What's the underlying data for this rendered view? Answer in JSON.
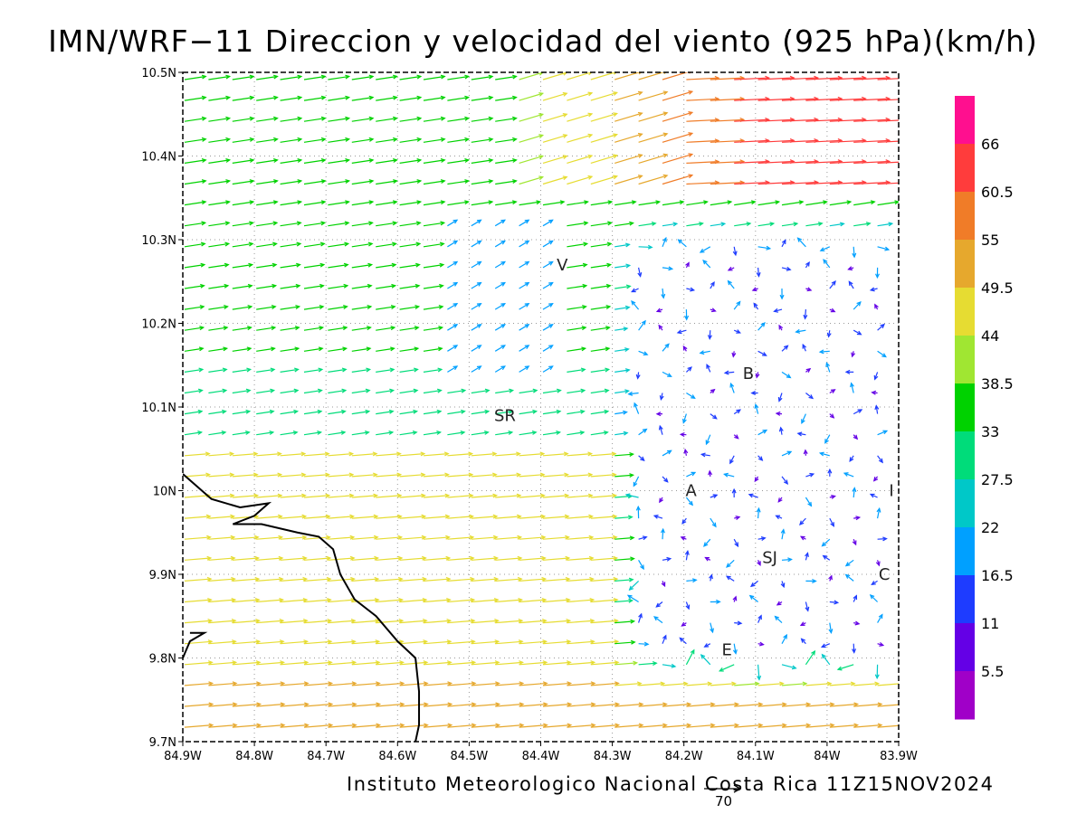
{
  "title": "IMN/WRF−11 Direccion y velocidad del viento (925 hPa)(km/h)",
  "credit": "Instituto Meteorologico Nacional Costa Rica 11Z15NOV2024",
  "scale_vector_label": "70",
  "map": {
    "lon_range": [
      -84.9,
      -83.9
    ],
    "lat_range": [
      9.7,
      10.5
    ],
    "x_tick_labels": [
      "84.9W",
      "84.8W",
      "84.7W",
      "84.6W",
      "84.5W",
      "84.4W",
      "84.3W",
      "84.2W",
      "84.1W",
      "84W",
      "83.9W"
    ],
    "y_tick_labels": [
      "9.7N",
      "9.8N",
      "9.9N",
      "10N",
      "10.1N",
      "10.2N",
      "10.3N",
      "10.4N",
      "10.5N"
    ],
    "grid": "dotted",
    "places": [
      {
        "label": "V",
        "lon": -84.37,
        "lat": 10.27
      },
      {
        "label": "B",
        "lon": -84.11,
        "lat": 10.14
      },
      {
        "label": "SR",
        "lon": -84.45,
        "lat": 10.09
      },
      {
        "label": "A",
        "lon": -84.19,
        "lat": 10.0
      },
      {
        "label": "I",
        "lon": -83.91,
        "lat": 10.0
      },
      {
        "label": "SJ",
        "lon": -84.08,
        "lat": 9.92
      },
      {
        "label": "C",
        "lon": -83.92,
        "lat": 9.9
      },
      {
        "label": "E",
        "lon": -84.14,
        "lat": 9.81
      }
    ],
    "coastline": [
      [
        -84.9,
        10.02
      ],
      [
        -84.86,
        9.99
      ],
      [
        -84.82,
        9.98
      ],
      [
        -84.78,
        9.985
      ],
      [
        -84.8,
        9.97
      ],
      [
        -84.83,
        9.96
      ],
      [
        -84.79,
        9.96
      ],
      [
        -84.74,
        9.95
      ],
      [
        -84.71,
        9.945
      ],
      [
        -84.69,
        9.93
      ],
      [
        -84.68,
        9.9
      ],
      [
        -84.66,
        9.87
      ],
      [
        -84.63,
        9.85
      ],
      [
        -84.6,
        9.82
      ],
      [
        -84.575,
        9.8
      ],
      [
        -84.57,
        9.76
      ],
      [
        -84.57,
        9.72
      ],
      [
        -84.575,
        9.7
      ]
    ],
    "coastline2": [
      [
        -84.9,
        9.8
      ],
      [
        -84.89,
        9.82
      ],
      [
        -84.87,
        9.83
      ],
      [
        -84.89,
        9.83
      ]
    ]
  },
  "colorbar": {
    "labels": [
      "66",
      "60.5",
      "55",
      "49.5",
      "44",
      "38.5",
      "33",
      "27.5",
      "22",
      "16.5",
      "11",
      "5.5"
    ],
    "colors": [
      "#ff0f8f",
      "#ff3c3c",
      "#f07c28",
      "#e6a82d",
      "#e6dc32",
      "#a0e632",
      "#00d200",
      "#00dc7a",
      "#00c8c8",
      "#00a0ff",
      "#1e3cff",
      "#6400e6",
      "#a000c8"
    ]
  }
}
